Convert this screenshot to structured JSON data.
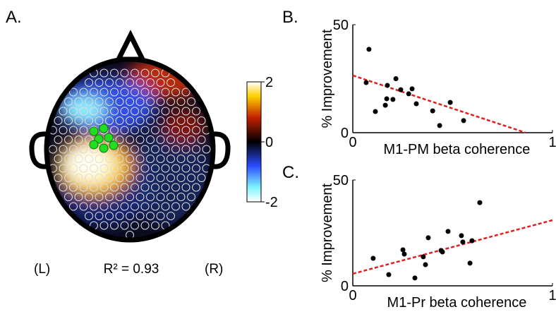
{
  "chart_data": [
    {
      "type": "topomap",
      "panel_label": "A.",
      "left_label": "(L)",
      "right_label": "(R)",
      "annotation": "R² = 0.93",
      "colorbar": {
        "clim": [
          -2,
          2
        ],
        "ticks": [
          2,
          0,
          -2
        ]
      }
    },
    {
      "type": "scatter",
      "panel_label": "B.",
      "xlabel": "M1-PM beta coherence",
      "ylabel": "% Improvement",
      "x": [
        0.067,
        0.081,
        0.113,
        0.163,
        0.17,
        0.173,
        0.201,
        0.216,
        0.24,
        0.28,
        0.297,
        0.318,
        0.4,
        0.435,
        0.488,
        0.555
      ],
      "values": [
        23.2,
        38.6,
        9.8,
        12.7,
        15.7,
        21.9,
        15.4,
        25,
        19.9,
        18,
        20.3,
        13.4,
        10.1,
        3.3,
        14,
        5.6
      ],
      "xlim": [
        0,
        1
      ],
      "ylim": [
        0,
        50
      ],
      "xticks": [
        0,
        1
      ],
      "yticks": [
        0,
        50
      ],
      "color": "#000000",
      "fit": {
        "slope": -30.6,
        "intercept": 26.5,
        "color": "#e02020"
      }
    },
    {
      "type": "scatter",
      "panel_label": "C.",
      "xlabel": "M1-Pr beta coherence",
      "ylabel": "% Improvement",
      "x": [
        0.102,
        0.18,
        0.251,
        0.258,
        0.311,
        0.353,
        0.364,
        0.378,
        0.442,
        0.449,
        0.477,
        0.544,
        0.551,
        0.597,
        0.587,
        0.636
      ],
      "values": [
        13,
        5.3,
        17,
        15,
        3.7,
        13.7,
        10,
        22.7,
        16.7,
        16,
        25.7,
        23.7,
        20.7,
        21.3,
        10.7,
        39.3
      ],
      "xlim": [
        0,
        1
      ],
      "ylim": [
        0,
        50
      ],
      "xticks": [
        0,
        1
      ],
      "yticks": [
        0,
        50
      ],
      "color": "#000000",
      "fit": {
        "slope": 25.3,
        "intercept": 5.7,
        "color": "#e02020"
      }
    }
  ]
}
